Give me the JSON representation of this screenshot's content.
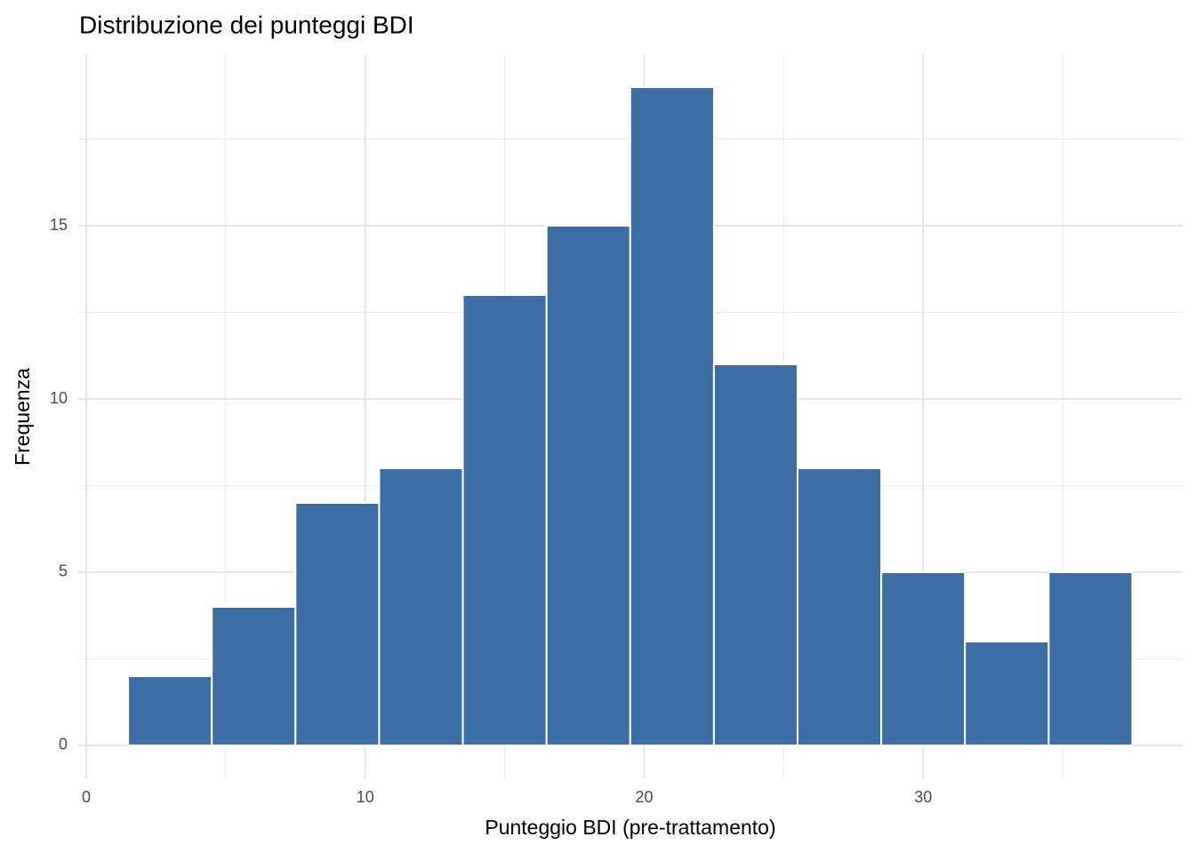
{
  "chart_data": {
    "type": "histogram",
    "title": "Distribuzione dei punteggi BDI",
    "x_label": "Punteggio BDI (pre-trattamento)",
    "y_label": "Frequenza",
    "bins": [
      1.5,
      4.5,
      7.5,
      10.5,
      13.5,
      16.5,
      19.5,
      22.5,
      25.5,
      28.5,
      31.5,
      34.5,
      37.5
    ],
    "values": [
      2,
      4,
      7,
      8,
      13,
      15,
      19,
      11,
      8,
      5,
      3,
      5
    ],
    "color": "#3a6ea5",
    "edge_color": "#ffffff",
    "xlim": [
      -0.3,
      39.3
    ],
    "ylim": [
      -0.95,
      19.95
    ],
    "xticks": [
      0,
      10,
      20,
      30
    ],
    "yticks": [
      0,
      5,
      10,
      15
    ],
    "x_minor_ticks": [
      5,
      15,
      25,
      35
    ],
    "y_minor_ticks": [
      2.5,
      7.5,
      12.5,
      17.5
    ],
    "grid": true
  }
}
